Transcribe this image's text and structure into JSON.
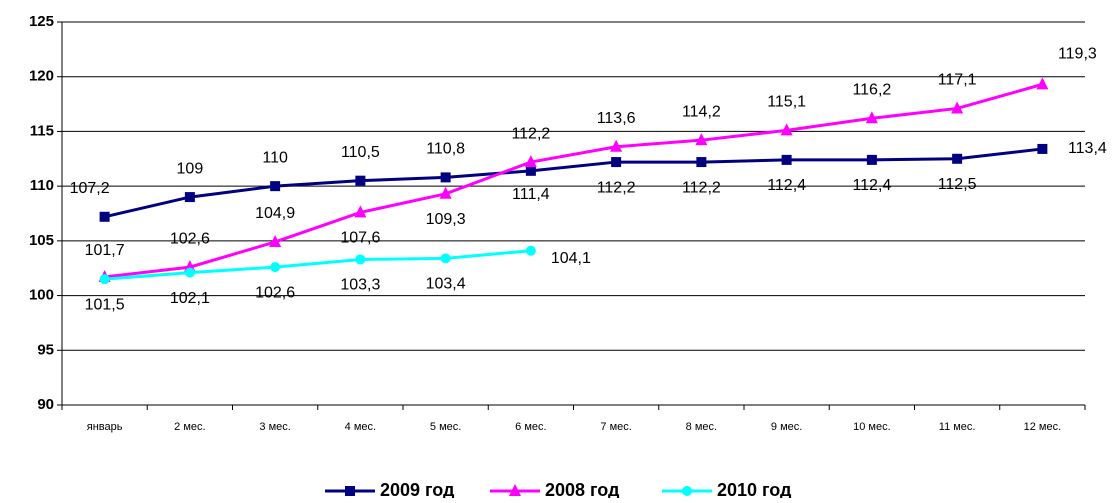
{
  "chart_data": {
    "type": "line",
    "categories": [
      "январь",
      "2 мес.",
      "3 мес.",
      "4 мес.",
      "5 мес.",
      "6 мес.",
      "7 мес.",
      "8 мес.",
      "9 мес.",
      "10 мес.",
      "11 мес.",
      "12 мес."
    ],
    "series": [
      {
        "name": "2009 год",
        "color": "#000080",
        "marker": "square",
        "values": [
          107.2,
          109,
          110,
          110.5,
          110.8,
          111.4,
          112.2,
          112.2,
          112.4,
          112.4,
          112.5,
          113.4
        ],
        "value_labels": [
          "107,2",
          "109",
          "110",
          "110,5",
          "110,8",
          "111,4",
          "112,2",
          "112,2",
          "112,4",
          "112,4",
          "112,5",
          "113,4"
        ]
      },
      {
        "name": "2008 год",
        "color": "#ff00ff",
        "marker": "triangle",
        "values": [
          101.7,
          102.6,
          104.9,
          107.6,
          109.3,
          112.2,
          113.6,
          114.2,
          115.1,
          116.2,
          117.1,
          119.3
        ],
        "value_labels": [
          "101,7",
          "102,6",
          "104,9",
          "107,6",
          "109,3",
          "112,2",
          "113,6",
          "114,2",
          "115,1",
          "116,2",
          "117,1",
          "119,3"
        ]
      },
      {
        "name": "2010 год",
        "color": "#00ffff",
        "marker": "circle",
        "values": [
          101.5,
          102.1,
          102.6,
          103.3,
          103.4,
          104.1,
          null,
          null,
          null,
          null,
          null,
          null
        ],
        "value_labels": [
          "101,5",
          "102,1",
          "102,6",
          "103,3",
          "103,4",
          "104,1",
          null,
          null,
          null,
          null,
          null,
          null
        ]
      }
    ],
    "ylim": [
      90,
      125
    ],
    "yticks": [
      90,
      95,
      100,
      105,
      110,
      115,
      120,
      125
    ],
    "grid": true,
    "legend": "bottom"
  }
}
